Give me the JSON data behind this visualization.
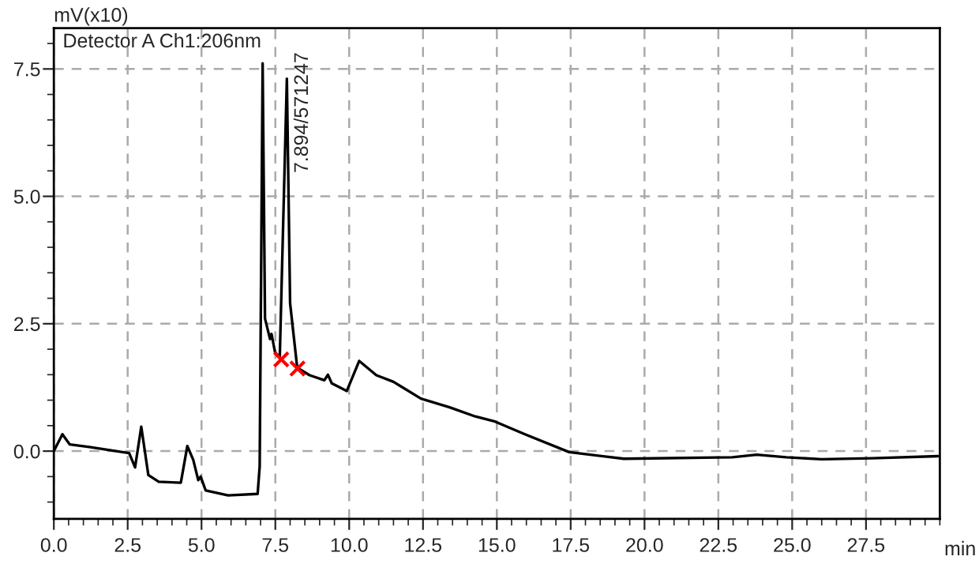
{
  "chart_data": {
    "type": "line",
    "ylabel": "mV(x10)",
    "xlabel": "min",
    "annotations": [
      "Detector A Ch1:206nm",
      {
        "text": "7.894/571247",
        "x": 7.894,
        "y": 7.31
      }
    ],
    "xlim": [
      0,
      30
    ],
    "ylim": [
      -1.33,
      8.3
    ],
    "xticks": [
      {
        "value": 0,
        "label": "0.0"
      },
      {
        "value": 2.5,
        "label": "2.5"
      },
      {
        "value": 5,
        "label": "5.0"
      },
      {
        "value": 7.5,
        "label": "7.5"
      },
      {
        "value": 10,
        "label": "10.0"
      },
      {
        "value": 12.5,
        "label": "12.5"
      },
      {
        "value": 15,
        "label": "15.0"
      },
      {
        "value": 17.5,
        "label": "17.5"
      },
      {
        "value": 20,
        "label": "20.0"
      },
      {
        "value": 22.5,
        "label": "22.5"
      },
      {
        "value": 25,
        "label": "25.0"
      },
      {
        "value": 27.5,
        "label": "27.5"
      }
    ],
    "yticks": [
      {
        "value": 0,
        "label": "0.0"
      },
      {
        "value": 2.5,
        "label": "2.5"
      },
      {
        "value": 5,
        "label": "5.0"
      },
      {
        "value": 7.5,
        "label": "7.5"
      }
    ],
    "grid": true,
    "line_style": "solid",
    "series": [
      {
        "color": "#000000",
        "x": [
          0,
          0.29,
          0.54,
          1.2,
          2.55,
          2.75,
          2.96,
          3.2,
          3.55,
          4.3,
          4.52,
          4.72,
          4.89,
          4.97,
          5.14,
          5.9,
          6.9,
          6.97,
          7.07,
          7.15,
          7.32,
          7.37,
          7.49,
          7.65,
          7.89,
          8.0,
          8.24,
          8.66,
          9.16,
          9.28,
          9.41,
          9.92,
          10.34,
          10.92,
          11.5,
          12.43,
          13.4,
          14.27,
          14.94,
          15.95,
          17.45,
          19.3,
          22.97,
          23.8,
          24.8,
          26.0,
          27.7,
          29.93
        ],
        "values": [
          0.0,
          0.33,
          0.13,
          0.08,
          -0.04,
          -0.32,
          0.48,
          -0.47,
          -0.6,
          -0.62,
          0.1,
          -0.17,
          -0.57,
          -0.5,
          -0.77,
          -0.87,
          -0.84,
          -0.3,
          7.61,
          2.6,
          2.2,
          2.3,
          1.94,
          1.84,
          7.31,
          2.9,
          1.64,
          1.49,
          1.39,
          1.5,
          1.33,
          1.18,
          1.77,
          1.49,
          1.36,
          1.03,
          0.86,
          0.68,
          0.58,
          0.33,
          -0.02,
          -0.15,
          -0.12,
          -0.07,
          -0.12,
          -0.16,
          -0.14,
          -0.1
        ]
      },
      {
        "type": "scatter",
        "color": "#ff0000",
        "marker": "cross",
        "x": [
          7.7,
          8.25
        ],
        "values": [
          1.8,
          1.62
        ]
      }
    ]
  }
}
